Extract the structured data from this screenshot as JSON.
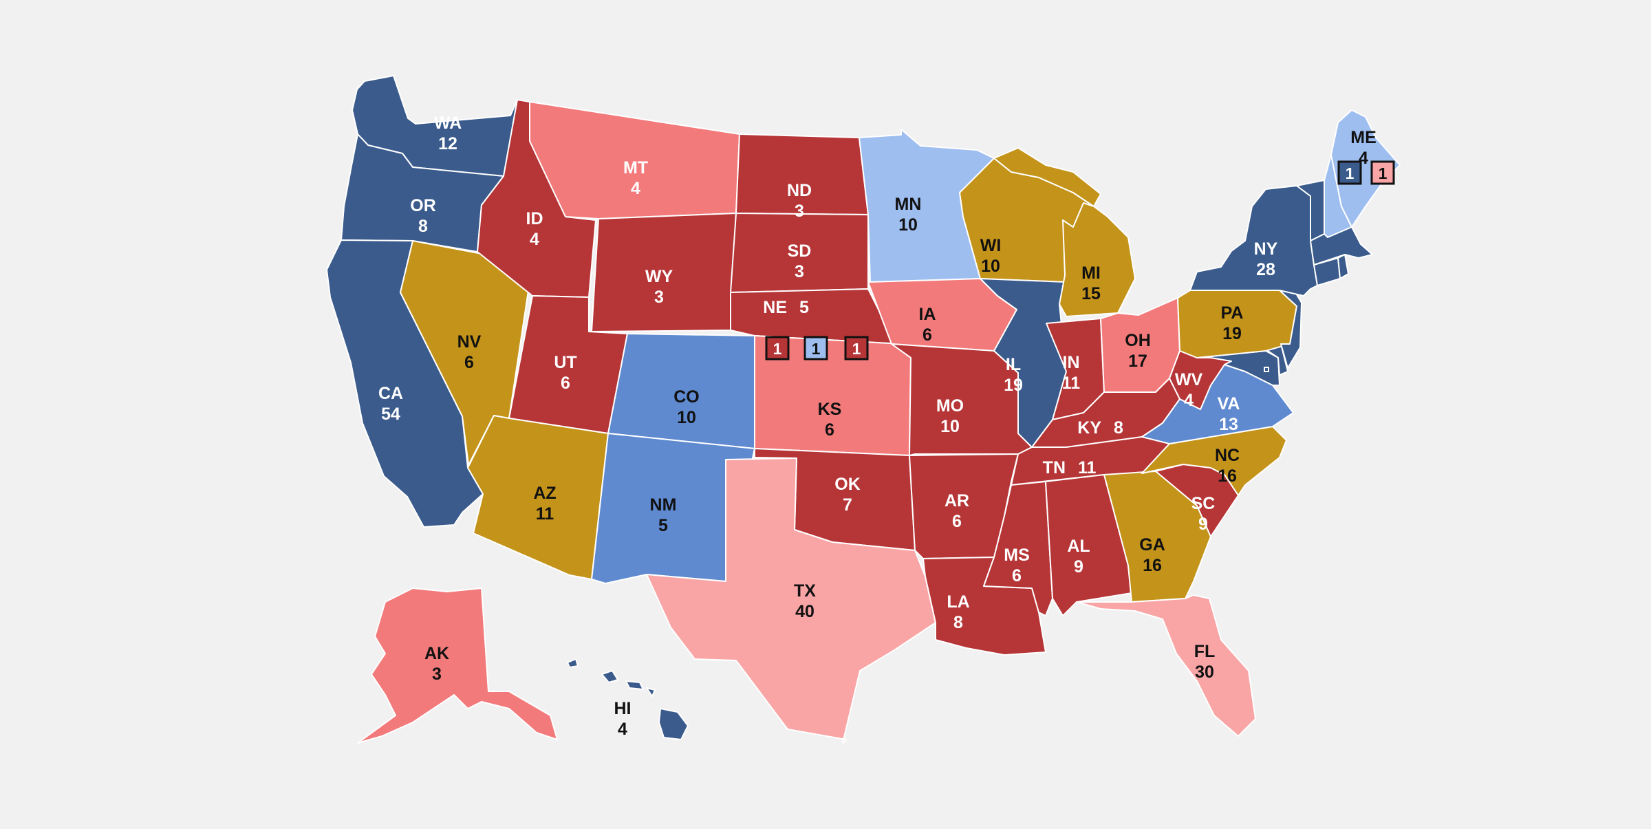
{
  "colors": {
    "background": "#f1f1f1",
    "safe_dem": "#3a5b8c",
    "likely_dem": "#5f8ad0",
    "lean_dem": "#9ebef0",
    "tossup": "#c4931a",
    "lean_rep": "#f9a5a6",
    "likely_rep": "#f37a7b",
    "safe_rep": "#b63537",
    "border": "#ffffff"
  },
  "states": [
    {
      "abbr": "WA",
      "ev": "12",
      "rating": "safe_dem"
    },
    {
      "abbr": "OR",
      "ev": "8",
      "rating": "safe_dem"
    },
    {
      "abbr": "CA",
      "ev": "54",
      "rating": "safe_dem"
    },
    {
      "abbr": "NV",
      "ev": "6",
      "rating": "tossup"
    },
    {
      "abbr": "ID",
      "ev": "4",
      "rating": "safe_rep"
    },
    {
      "abbr": "MT",
      "ev": "4",
      "rating": "likely_rep"
    },
    {
      "abbr": "WY",
      "ev": "3",
      "rating": "safe_rep"
    },
    {
      "abbr": "UT",
      "ev": "6",
      "rating": "safe_rep"
    },
    {
      "abbr": "AZ",
      "ev": "11",
      "rating": "tossup"
    },
    {
      "abbr": "CO",
      "ev": "10",
      "rating": "likely_dem"
    },
    {
      "abbr": "NM",
      "ev": "5",
      "rating": "likely_dem"
    },
    {
      "abbr": "ND",
      "ev": "3",
      "rating": "safe_rep"
    },
    {
      "abbr": "SD",
      "ev": "3",
      "rating": "safe_rep"
    },
    {
      "abbr": "NE",
      "ev": "5",
      "rating": "safe_rep"
    },
    {
      "abbr": "KS",
      "ev": "6",
      "rating": "likely_rep"
    },
    {
      "abbr": "OK",
      "ev": "7",
      "rating": "safe_rep"
    },
    {
      "abbr": "TX",
      "ev": "40",
      "rating": "lean_rep"
    },
    {
      "abbr": "MN",
      "ev": "10",
      "rating": "lean_dem"
    },
    {
      "abbr": "IA",
      "ev": "6",
      "rating": "likely_rep"
    },
    {
      "abbr": "MO",
      "ev": "10",
      "rating": "safe_rep"
    },
    {
      "abbr": "AR",
      "ev": "6",
      "rating": "safe_rep"
    },
    {
      "abbr": "LA",
      "ev": "8",
      "rating": "safe_rep"
    },
    {
      "abbr": "WI",
      "ev": "10",
      "rating": "tossup"
    },
    {
      "abbr": "IL",
      "ev": "19",
      "rating": "safe_dem"
    },
    {
      "abbr": "MI",
      "ev": "15",
      "rating": "tossup"
    },
    {
      "abbr": "IN",
      "ev": "11",
      "rating": "safe_rep"
    },
    {
      "abbr": "OH",
      "ev": "17",
      "rating": "likely_rep"
    },
    {
      "abbr": "KY",
      "ev": "8",
      "rating": "safe_rep"
    },
    {
      "abbr": "TN",
      "ev": "11",
      "rating": "safe_rep"
    },
    {
      "abbr": "MS",
      "ev": "6",
      "rating": "safe_rep"
    },
    {
      "abbr": "AL",
      "ev": "9",
      "rating": "safe_rep"
    },
    {
      "abbr": "GA",
      "ev": "16",
      "rating": "tossup"
    },
    {
      "abbr": "FL",
      "ev": "30",
      "rating": "lean_rep"
    },
    {
      "abbr": "SC",
      "ev": "9",
      "rating": "safe_rep"
    },
    {
      "abbr": "NC",
      "ev": "16",
      "rating": "tossup"
    },
    {
      "abbr": "VA",
      "ev": "13",
      "rating": "likely_dem"
    },
    {
      "abbr": "WV",
      "ev": "4",
      "rating": "safe_rep"
    },
    {
      "abbr": "PA",
      "ev": "19",
      "rating": "tossup"
    },
    {
      "abbr": "NY",
      "ev": "28",
      "rating": "safe_dem"
    },
    {
      "abbr": "ME",
      "ev": "4",
      "rating": "lean_dem"
    },
    {
      "abbr": "AK",
      "ev": "3",
      "rating": "likely_rep"
    },
    {
      "abbr": "HI",
      "ev": "4",
      "rating": "safe_dem"
    }
  ],
  "unlabeled_states": [
    {
      "abbr": "NJ",
      "rating": "safe_dem"
    },
    {
      "abbr": "DE",
      "rating": "safe_dem"
    },
    {
      "abbr": "MD",
      "rating": "safe_dem"
    },
    {
      "abbr": "DC",
      "rating": "safe_dem"
    },
    {
      "abbr": "CT",
      "rating": "safe_dem"
    },
    {
      "abbr": "RI",
      "rating": "safe_dem"
    },
    {
      "abbr": "MA",
      "rating": "safe_dem"
    },
    {
      "abbr": "VT",
      "rating": "safe_dem"
    },
    {
      "abbr": "NH",
      "rating": "lean_dem"
    }
  ],
  "districts": [
    {
      "state": "NE",
      "district": "NE-1",
      "ev": "1",
      "rating": "safe_rep"
    },
    {
      "state": "NE",
      "district": "NE-2",
      "ev": "1",
      "rating": "lean_dem"
    },
    {
      "state": "NE",
      "district": "NE-3",
      "ev": "1",
      "rating": "safe_rep"
    },
    {
      "state": "ME",
      "district": "ME-1",
      "ev": "1",
      "rating": "safe_dem"
    },
    {
      "state": "ME",
      "district": "ME-2",
      "ev": "1",
      "rating": "lean_rep"
    }
  ]
}
